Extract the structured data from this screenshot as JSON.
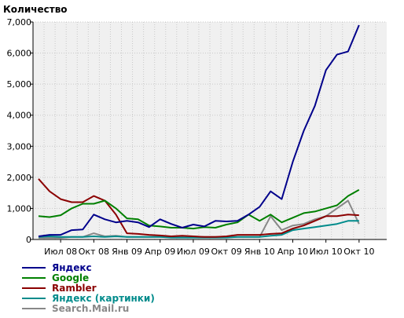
{
  "chart_data": {
    "type": "line",
    "ylabel": "Количество",
    "ylim": [
      0,
      7000
    ],
    "yticks": [
      0,
      1000,
      2000,
      3000,
      4000,
      5000,
      6000,
      7000
    ],
    "ytick_labels": [
      "0",
      "1,000",
      "2,000",
      "3,000",
      "4,000",
      "5,000",
      "6,000",
      "7,000"
    ],
    "x": [
      "2008-05",
      "2008-06",
      "2008-07",
      "2008-08",
      "2008-09",
      "2008-10",
      "2008-11",
      "2008-12",
      "2009-01",
      "2009-02",
      "2009-03",
      "2009-04",
      "2009-05",
      "2009-06",
      "2009-07",
      "2009-08",
      "2009-09",
      "2009-10",
      "2009-11",
      "2009-12",
      "2010-01",
      "2010-02",
      "2010-03",
      "2010-04",
      "2010-05",
      "2010-06",
      "2010-07",
      "2010-08",
      "2010-09",
      "2010-10",
      "2010-11",
      "2010-12"
    ],
    "xtick_labels": [
      "Июл 08",
      "Окт 08",
      "Янв 09",
      "Апр 09",
      "Июл 09",
      "Окт 09",
      "Янв 10",
      "Апр 10",
      "Июл 10",
      "Окт 10"
    ],
    "xtick_index": [
      2,
      5,
      8,
      11,
      14,
      17,
      20,
      23,
      26,
      29
    ],
    "grid": true,
    "legend_position": "bottom-left",
    "series": [
      {
        "name": "Яндекс",
        "color": "#00008b",
        "values": [
          100,
          150,
          150,
          300,
          320,
          800,
          650,
          550,
          600,
          550,
          400,
          650,
          500,
          380,
          480,
          420,
          600,
          580,
          600,
          800,
          1050,
          1550,
          1300,
          2500,
          3500,
          4300,
          5450,
          5950,
          6050,
          6900,
          null,
          null
        ]
      },
      {
        "name": "Google",
        "color": "#008000",
        "values": [
          750,
          720,
          780,
          1000,
          1150,
          1150,
          1250,
          1000,
          680,
          650,
          450,
          420,
          380,
          380,
          350,
          400,
          380,
          480,
          550,
          800,
          600,
          800,
          550,
          700,
          850,
          900,
          1000,
          1100,
          1400,
          1600,
          null,
          null
        ]
      },
      {
        "name": "Rambler",
        "color": "#8b0000",
        "values": [
          1950,
          1550,
          1300,
          1200,
          1200,
          1400,
          1250,
          800,
          200,
          180,
          150,
          130,
          100,
          120,
          100,
          80,
          80,
          100,
          150,
          150,
          150,
          180,
          200,
          350,
          450,
          600,
          750,
          750,
          800,
          780,
          null,
          null
        ]
      },
      {
        "name": "Яндекс (картинки)",
        "color": "#008b8b",
        "values": [
          80,
          100,
          80,
          80,
          80,
          100,
          80,
          100,
          80,
          80,
          80,
          80,
          60,
          60,
          60,
          60,
          60,
          60,
          80,
          80,
          80,
          120,
          150,
          300,
          350,
          400,
          450,
          500,
          600,
          600,
          null,
          null
        ]
      },
      {
        "name": "Search.Mail.ru",
        "color": "#888888",
        "values": [
          50,
          50,
          50,
          80,
          80,
          200,
          100,
          120,
          80,
          80,
          80,
          80,
          80,
          80,
          80,
          80,
          80,
          80,
          80,
          80,
          80,
          750,
          300,
          450,
          500,
          650,
          750,
          1000,
          1250,
          500,
          null,
          null
        ]
      }
    ]
  }
}
